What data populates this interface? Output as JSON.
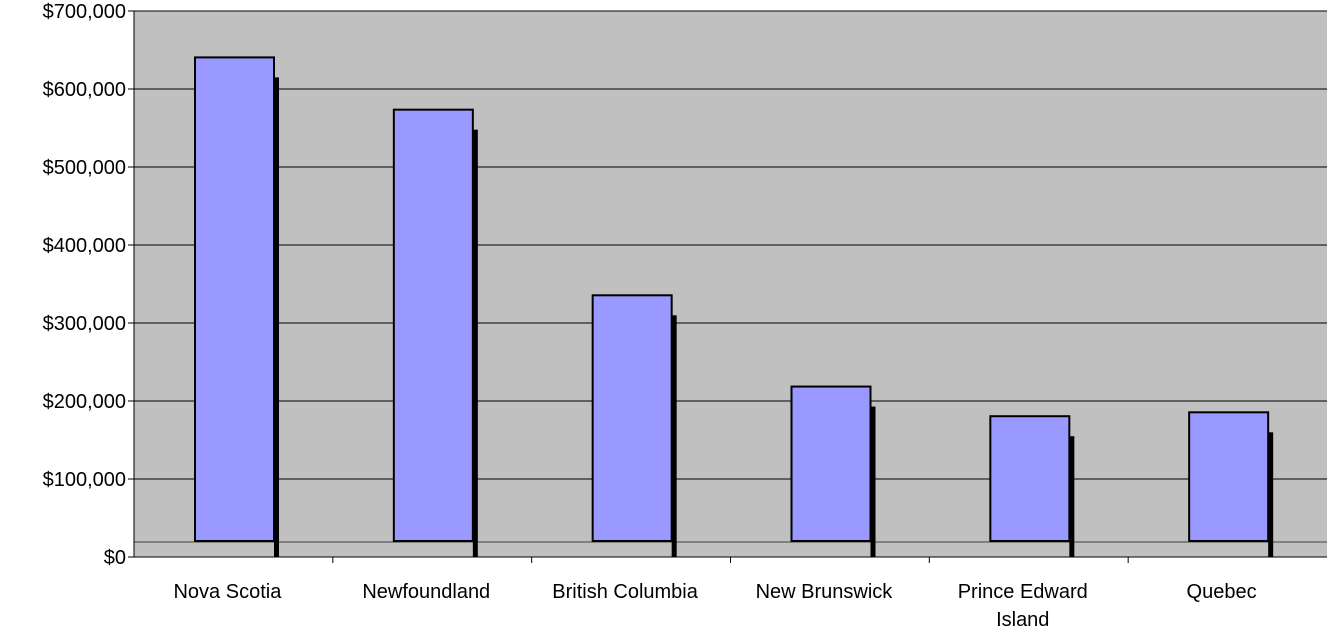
{
  "chart_data": {
    "type": "bar",
    "title": "",
    "xlabel": "",
    "ylabel": "",
    "categories": [
      "Nova Scotia",
      "Newfoundland",
      "British Columbia",
      "New Brunswick",
      "Prince Edward Island",
      "Quebec"
    ],
    "category_label_lines": [
      [
        "Nova Scotia"
      ],
      [
        "Newfoundland"
      ],
      [
        "British Columbia"
      ],
      [
        "New Brunswick"
      ],
      [
        "Prince Edward",
        "Island"
      ],
      [
        "Quebec"
      ]
    ],
    "values": [
      620000,
      553000,
      315000,
      198000,
      160000,
      165000
    ],
    "ylim": [
      0,
      700000
    ],
    "y_ticks": [
      0,
      100000,
      200000,
      300000,
      400000,
      500000,
      600000,
      700000
    ],
    "y_tick_labels": [
      "$0",
      "$100,000",
      "$200,000",
      "$300,000",
      "$400,000",
      "$500,000",
      "$600,000",
      "$700,000"
    ],
    "grid": true,
    "legend": "none",
    "colors": {
      "bar_fill": "#9999ff",
      "bar_border": "#000000",
      "bar_shadow": "#000000",
      "plot_background": "#c0c0c0",
      "gridline": "#000000",
      "floor": "#808080"
    }
  }
}
